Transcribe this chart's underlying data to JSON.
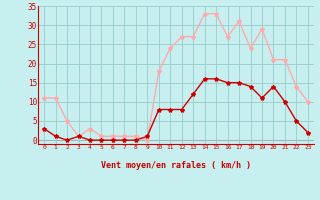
{
  "hours": [
    0,
    1,
    2,
    3,
    4,
    5,
    6,
    7,
    8,
    9,
    10,
    11,
    12,
    13,
    14,
    15,
    16,
    17,
    18,
    19,
    20,
    21,
    22,
    23
  ],
  "wind_avg": [
    3,
    1,
    0,
    1,
    0,
    0,
    0,
    0,
    0,
    1,
    8,
    8,
    8,
    12,
    16,
    16,
    15,
    15,
    14,
    11,
    14,
    10,
    5,
    2
  ],
  "wind_gust": [
    11,
    11,
    5,
    1,
    3,
    1,
    1,
    1,
    1,
    0,
    18,
    24,
    27,
    27,
    33,
    33,
    27,
    31,
    24,
    29,
    21,
    21,
    14,
    10
  ],
  "wind_dir_arrows": [
    "↗",
    "↓",
    "↗",
    "→",
    "↗",
    "→",
    "→",
    "→",
    "→",
    "→",
    "↗",
    "↗",
    "↗",
    "↗",
    "↗",
    "↖",
    "↖",
    "↖",
    "↖",
    "↖",
    "↖",
    "↖",
    "↖",
    "↓"
  ],
  "wind_avg_color": "#cc0000",
  "wind_gust_color": "#ffaaaa",
  "background_color": "#c8efef",
  "grid_color": "#99cccc",
  "xlabel": "Vent moyen/en rafales ( km/h )",
  "xlabel_color": "#cc0000",
  "tick_color": "#cc0000",
  "ylim": [
    -1,
    35
  ],
  "yticks": [
    0,
    5,
    10,
    15,
    20,
    25,
    30,
    35
  ],
  "marker": "*",
  "marker_size": 3,
  "line_width": 1.0
}
